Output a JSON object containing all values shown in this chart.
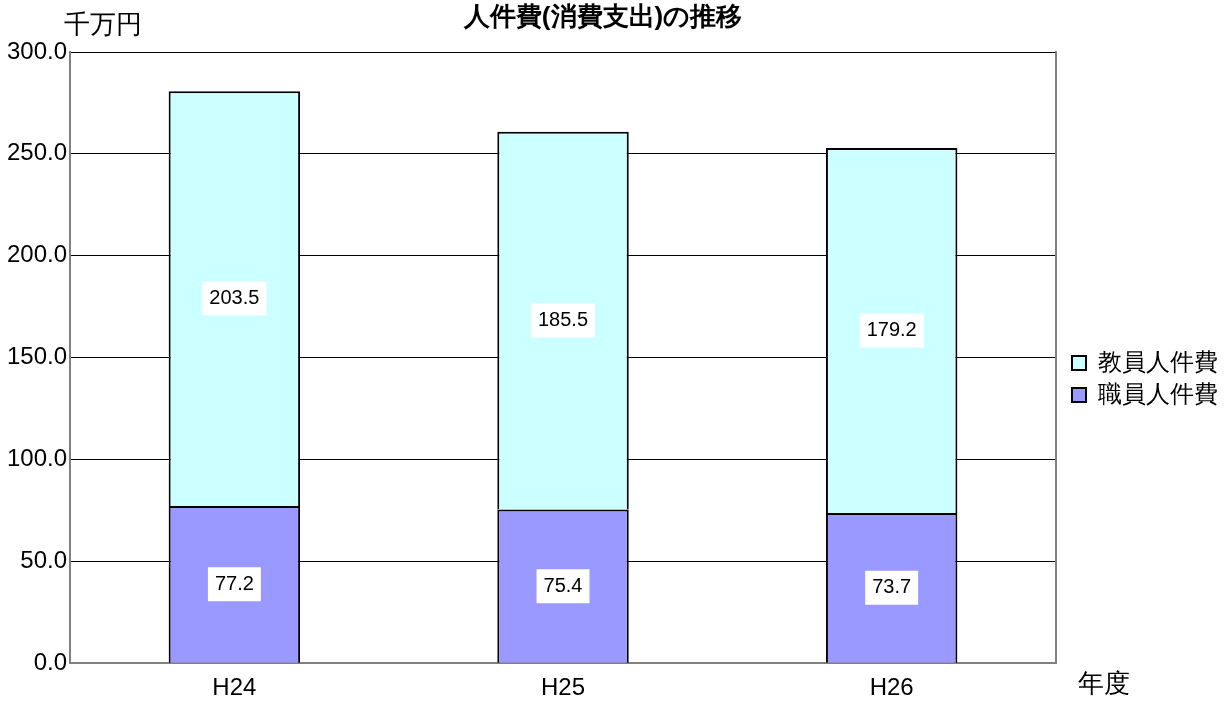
{
  "chart_data": {
    "type": "bar",
    "title": "人件費(消費支出)の推移",
    "ylabel": "千万円",
    "xlabel": "年度",
    "categories": [
      "H24",
      "H25",
      "H26"
    ],
    "stacked": true,
    "series": [
      {
        "name": "職員人件費",
        "color": "#9999ff",
        "values": [
          77.2,
          75.4,
          73.7
        ]
      },
      {
        "name": "教員人件費",
        "color": "#ccffff",
        "values": [
          203.5,
          185.5,
          179.2
        ]
      }
    ],
    "ylim": [
      0,
      300
    ],
    "yticks": [
      {
        "value": 0,
        "label": "0.0"
      },
      {
        "value": 50,
        "label": "50.0"
      },
      {
        "value": 100,
        "label": "100.0"
      },
      {
        "value": 150,
        "label": "150.0"
      },
      {
        "value": 200,
        "label": "200.0"
      },
      {
        "value": 250,
        "label": "250.0"
      },
      {
        "value": 300,
        "label": "300.0"
      }
    ],
    "grid": "y",
    "legend": "right",
    "data_labels": true
  }
}
